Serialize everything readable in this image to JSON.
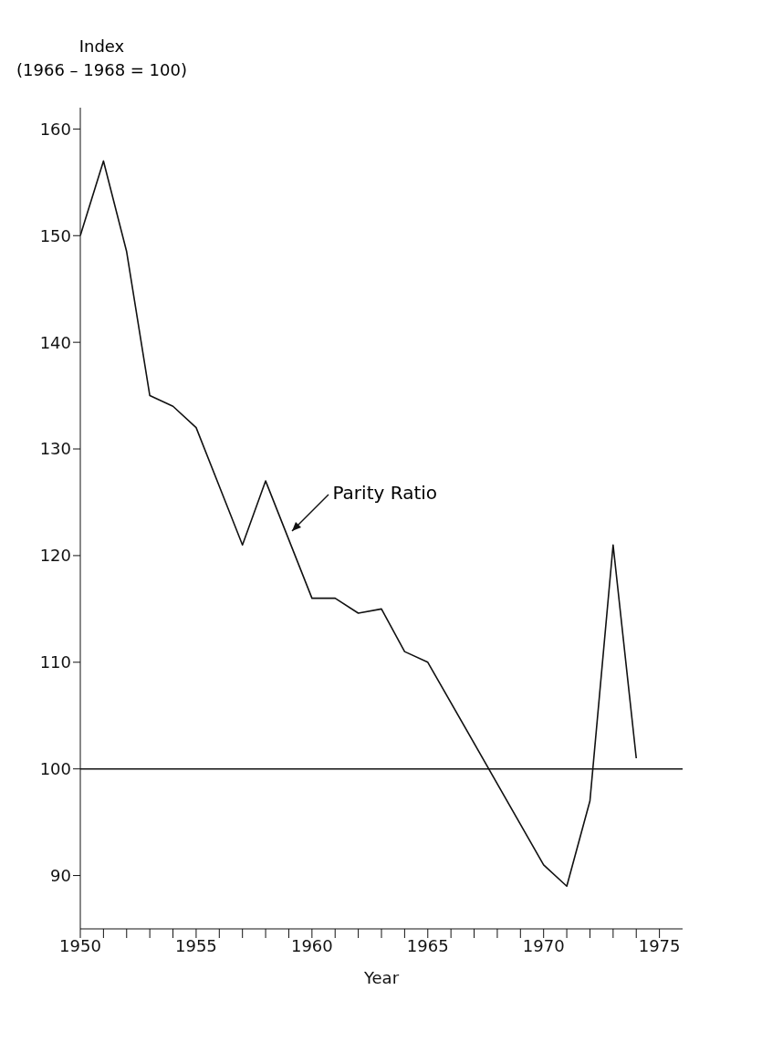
{
  "chart_data": {
    "type": "line",
    "xlabel": "Year",
    "ylabel": "Index\n(1966 – 1968 = 100)",
    "x": [
      1950,
      1951,
      1952,
      1953,
      1954,
      1955,
      1957,
      1958,
      1960,
      1961,
      1962,
      1963,
      1964,
      1965,
      1970,
      1971,
      1972,
      1973,
      1974
    ],
    "series": [
      {
        "color": "#111111",
        "values": [
          150,
          157,
          148.5,
          135,
          134,
          132,
          121,
          127,
          116,
          116,
          114.6,
          115,
          111,
          110,
          91,
          89,
          97,
          121,
          101
        ]
      }
    ],
    "xlim": [
      1950,
      1976
    ],
    "xticks": [
      1950,
      {
        "value": 1951,
        "label": null
      },
      {
        "value": 1952,
        "label": null
      },
      {
        "value": 1953,
        "label": null
      },
      {
        "value": 1954,
        "label": null
      },
      1955,
      {
        "value": 1956,
        "label": null
      },
      {
        "value": 1957,
        "label": null
      },
      {
        "value": 1958,
        "label": null
      },
      {
        "value": 1959,
        "label": null
      },
      1960,
      {
        "value": 1961,
        "label": null
      },
      {
        "value": 1962,
        "label": null
      },
      {
        "value": 1963,
        "label": null
      },
      {
        "value": 1964,
        "label": null
      },
      1965,
      {
        "value": 1966,
        "label": null
      },
      {
        "value": 1967,
        "label": null
      },
      {
        "value": 1968,
        "label": null
      },
      {
        "value": 1969,
        "label": null
      },
      1970,
      {
        "value": 1971,
        "label": null
      },
      {
        "value": 1972,
        "label": null
      },
      {
        "value": 1973,
        "label": null
      },
      {
        "value": 1974,
        "label": null
      },
      1975
    ],
    "ylim": [
      85,
      162
    ],
    "yticks": [
      90,
      100,
      110,
      120,
      130,
      140,
      150,
      160
    ],
    "ref_lines": [
      {
        "axis": "y",
        "value": 100,
        "color": "#111111"
      }
    ],
    "annotations": [
      {
        "text": "Parity Ratio",
        "x": 1959,
        "y": 122
      }
    ],
    "marker": "none",
    "line_style": "solid"
  }
}
